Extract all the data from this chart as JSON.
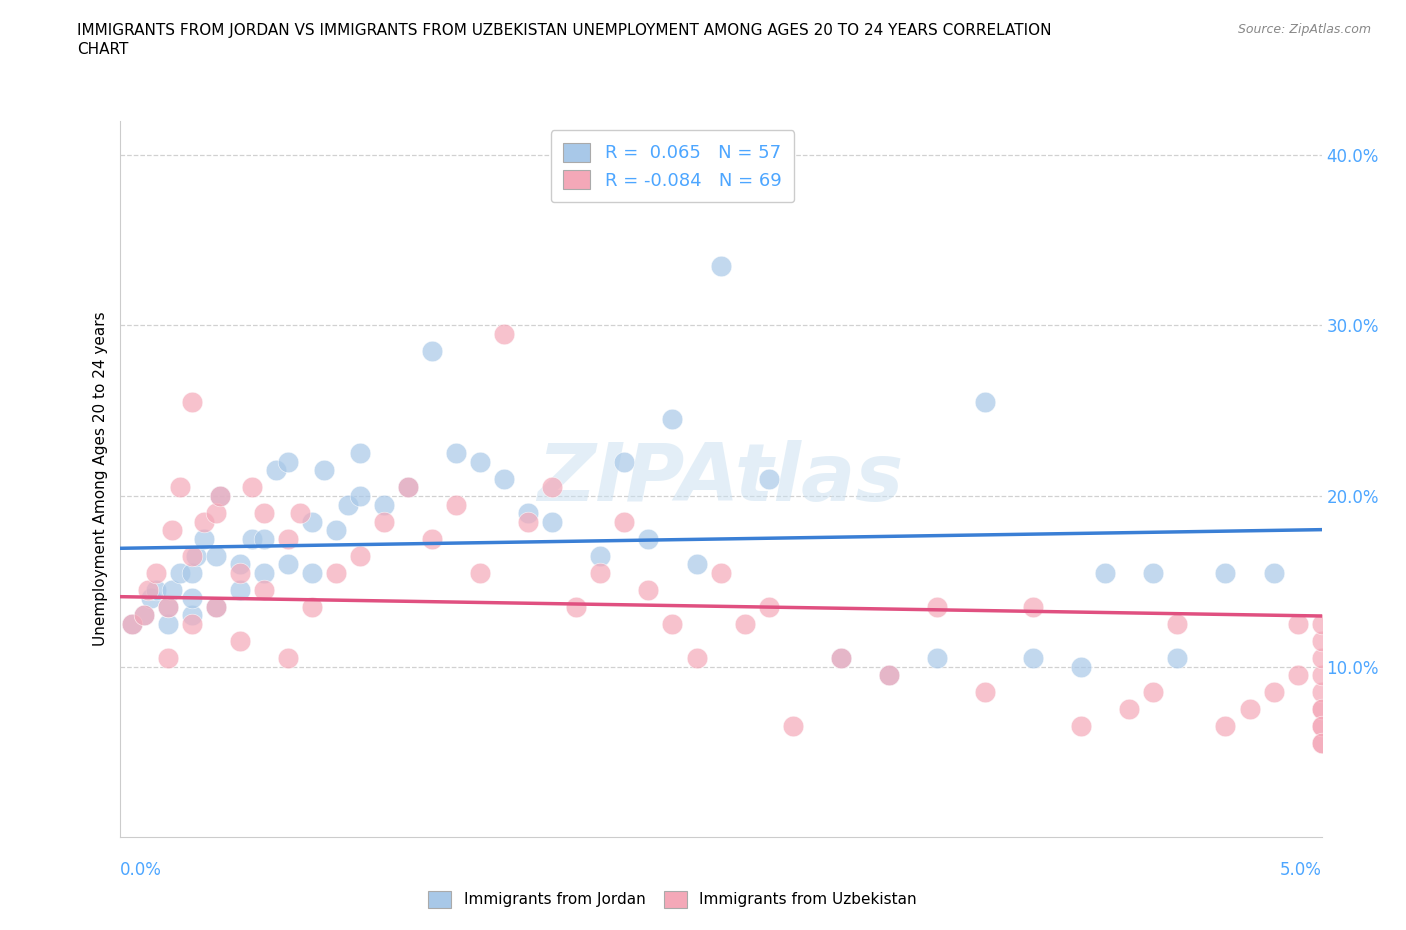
{
  "title_line1": "IMMIGRANTS FROM JORDAN VS IMMIGRANTS FROM UZBEKISTAN UNEMPLOYMENT AMONG AGES 20 TO 24 YEARS CORRELATION",
  "title_line2": "CHART",
  "source_text": "Source: ZipAtlas.com",
  "ylabel": "Unemployment Among Ages 20 to 24 years",
  "xlim": [
    0.0,
    0.05
  ],
  "ylim": [
    0.0,
    0.42
  ],
  "yticks": [
    0.1,
    0.2,
    0.3,
    0.4
  ],
  "ytick_labels": [
    "10.0%",
    "20.0%",
    "30.0%",
    "40.0%"
  ],
  "jordan_color": "#a8c8e8",
  "uzbekistan_color": "#f4a8b8",
  "jordan_line_color": "#3a7fd5",
  "uzbekistan_line_color": "#e05080",
  "tick_color": "#4da6ff",
  "legend_jordan_R": "0.065",
  "legend_jordan_N": "57",
  "legend_uzbekistan_R": "-0.084",
  "legend_uzbekistan_N": "69",
  "jordan_x": [
    0.0005,
    0.001,
    0.0013,
    0.0015,
    0.002,
    0.002,
    0.0022,
    0.0025,
    0.003,
    0.003,
    0.003,
    0.0032,
    0.0035,
    0.004,
    0.004,
    0.0042,
    0.005,
    0.005,
    0.0055,
    0.006,
    0.006,
    0.0065,
    0.007,
    0.007,
    0.008,
    0.008,
    0.0085,
    0.009,
    0.0095,
    0.01,
    0.01,
    0.011,
    0.012,
    0.013,
    0.014,
    0.015,
    0.016,
    0.017,
    0.018,
    0.02,
    0.021,
    0.022,
    0.023,
    0.024,
    0.025,
    0.027,
    0.03,
    0.032,
    0.034,
    0.036,
    0.038,
    0.04,
    0.041,
    0.043,
    0.044,
    0.046,
    0.048
  ],
  "jordan_y": [
    0.125,
    0.13,
    0.14,
    0.145,
    0.125,
    0.135,
    0.145,
    0.155,
    0.13,
    0.14,
    0.155,
    0.165,
    0.175,
    0.135,
    0.165,
    0.2,
    0.145,
    0.16,
    0.175,
    0.155,
    0.175,
    0.215,
    0.16,
    0.22,
    0.155,
    0.185,
    0.215,
    0.18,
    0.195,
    0.2,
    0.225,
    0.195,
    0.205,
    0.285,
    0.225,
    0.22,
    0.21,
    0.19,
    0.185,
    0.165,
    0.22,
    0.175,
    0.245,
    0.16,
    0.335,
    0.21,
    0.105,
    0.095,
    0.105,
    0.255,
    0.105,
    0.1,
    0.155,
    0.155,
    0.105,
    0.155,
    0.155
  ],
  "uzbek_x": [
    0.0005,
    0.001,
    0.0012,
    0.0015,
    0.002,
    0.002,
    0.0022,
    0.0025,
    0.003,
    0.003,
    0.003,
    0.0035,
    0.004,
    0.004,
    0.0042,
    0.005,
    0.005,
    0.0055,
    0.006,
    0.006,
    0.007,
    0.007,
    0.0075,
    0.008,
    0.009,
    0.01,
    0.011,
    0.012,
    0.013,
    0.014,
    0.015,
    0.016,
    0.017,
    0.018,
    0.019,
    0.02,
    0.021,
    0.022,
    0.023,
    0.024,
    0.025,
    0.026,
    0.027,
    0.028,
    0.03,
    0.032,
    0.034,
    0.036,
    0.038,
    0.04,
    0.042,
    0.043,
    0.044,
    0.046,
    0.047,
    0.048,
    0.049,
    0.049,
    0.05,
    0.05,
    0.05,
    0.05,
    0.05,
    0.05,
    0.05,
    0.05,
    0.05,
    0.05,
    0.05
  ],
  "uzbek_y": [
    0.125,
    0.13,
    0.145,
    0.155,
    0.105,
    0.135,
    0.18,
    0.205,
    0.125,
    0.165,
    0.255,
    0.185,
    0.135,
    0.19,
    0.2,
    0.115,
    0.155,
    0.205,
    0.145,
    0.19,
    0.105,
    0.175,
    0.19,
    0.135,
    0.155,
    0.165,
    0.185,
    0.205,
    0.175,
    0.195,
    0.155,
    0.295,
    0.185,
    0.205,
    0.135,
    0.155,
    0.185,
    0.145,
    0.125,
    0.105,
    0.155,
    0.125,
    0.135,
    0.065,
    0.105,
    0.095,
    0.135,
    0.085,
    0.135,
    0.065,
    0.075,
    0.085,
    0.125,
    0.065,
    0.075,
    0.085,
    0.095,
    0.125,
    0.055,
    0.065,
    0.075,
    0.085,
    0.095,
    0.105,
    0.115,
    0.125,
    0.075,
    0.065,
    0.055
  ]
}
